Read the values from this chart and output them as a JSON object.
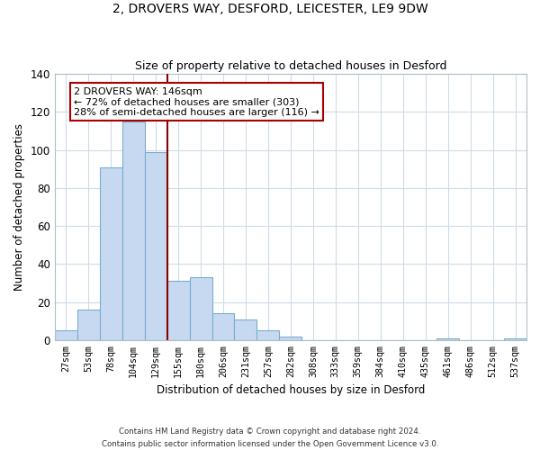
{
  "title": "2, DROVERS WAY, DESFORD, LEICESTER, LE9 9DW",
  "subtitle": "Size of property relative to detached houses in Desford",
  "xlabel": "Distribution of detached houses by size in Desford",
  "ylabel": "Number of detached properties",
  "bar_labels": [
    "27sqm",
    "53sqm",
    "78sqm",
    "104sqm",
    "129sqm",
    "155sqm",
    "180sqm",
    "206sqm",
    "231sqm",
    "257sqm",
    "282sqm",
    "308sqm",
    "333sqm",
    "359sqm",
    "384sqm",
    "410sqm",
    "435sqm",
    "461sqm",
    "486sqm",
    "512sqm",
    "537sqm"
  ],
  "bar_heights": [
    5,
    16,
    91,
    115,
    99,
    31,
    33,
    14,
    11,
    5,
    2,
    0,
    0,
    0,
    0,
    0,
    0,
    1,
    0,
    0,
    1
  ],
  "bar_color": "#c6d9f0",
  "bar_edge_color": "#7aadcf",
  "vline_color": "#8b0000",
  "ylim": [
    0,
    140
  ],
  "yticks": [
    0,
    20,
    40,
    60,
    80,
    100,
    120,
    140
  ],
  "annotation_title": "2 DROVERS WAY: 146sqm",
  "annotation_line1": "← 72% of detached houses are smaller (303)",
  "annotation_line2": "28% of semi-detached houses are larger (116) →",
  "annotation_box_color": "#ffffff",
  "annotation_box_edge": "#aa0000",
  "footer_line1": "Contains HM Land Registry data © Crown copyright and database right 2024.",
  "footer_line2": "Contains public sector information licensed under the Open Government Licence v3.0.",
  "background_color": "#ffffff",
  "grid_color": "#d0dce8"
}
